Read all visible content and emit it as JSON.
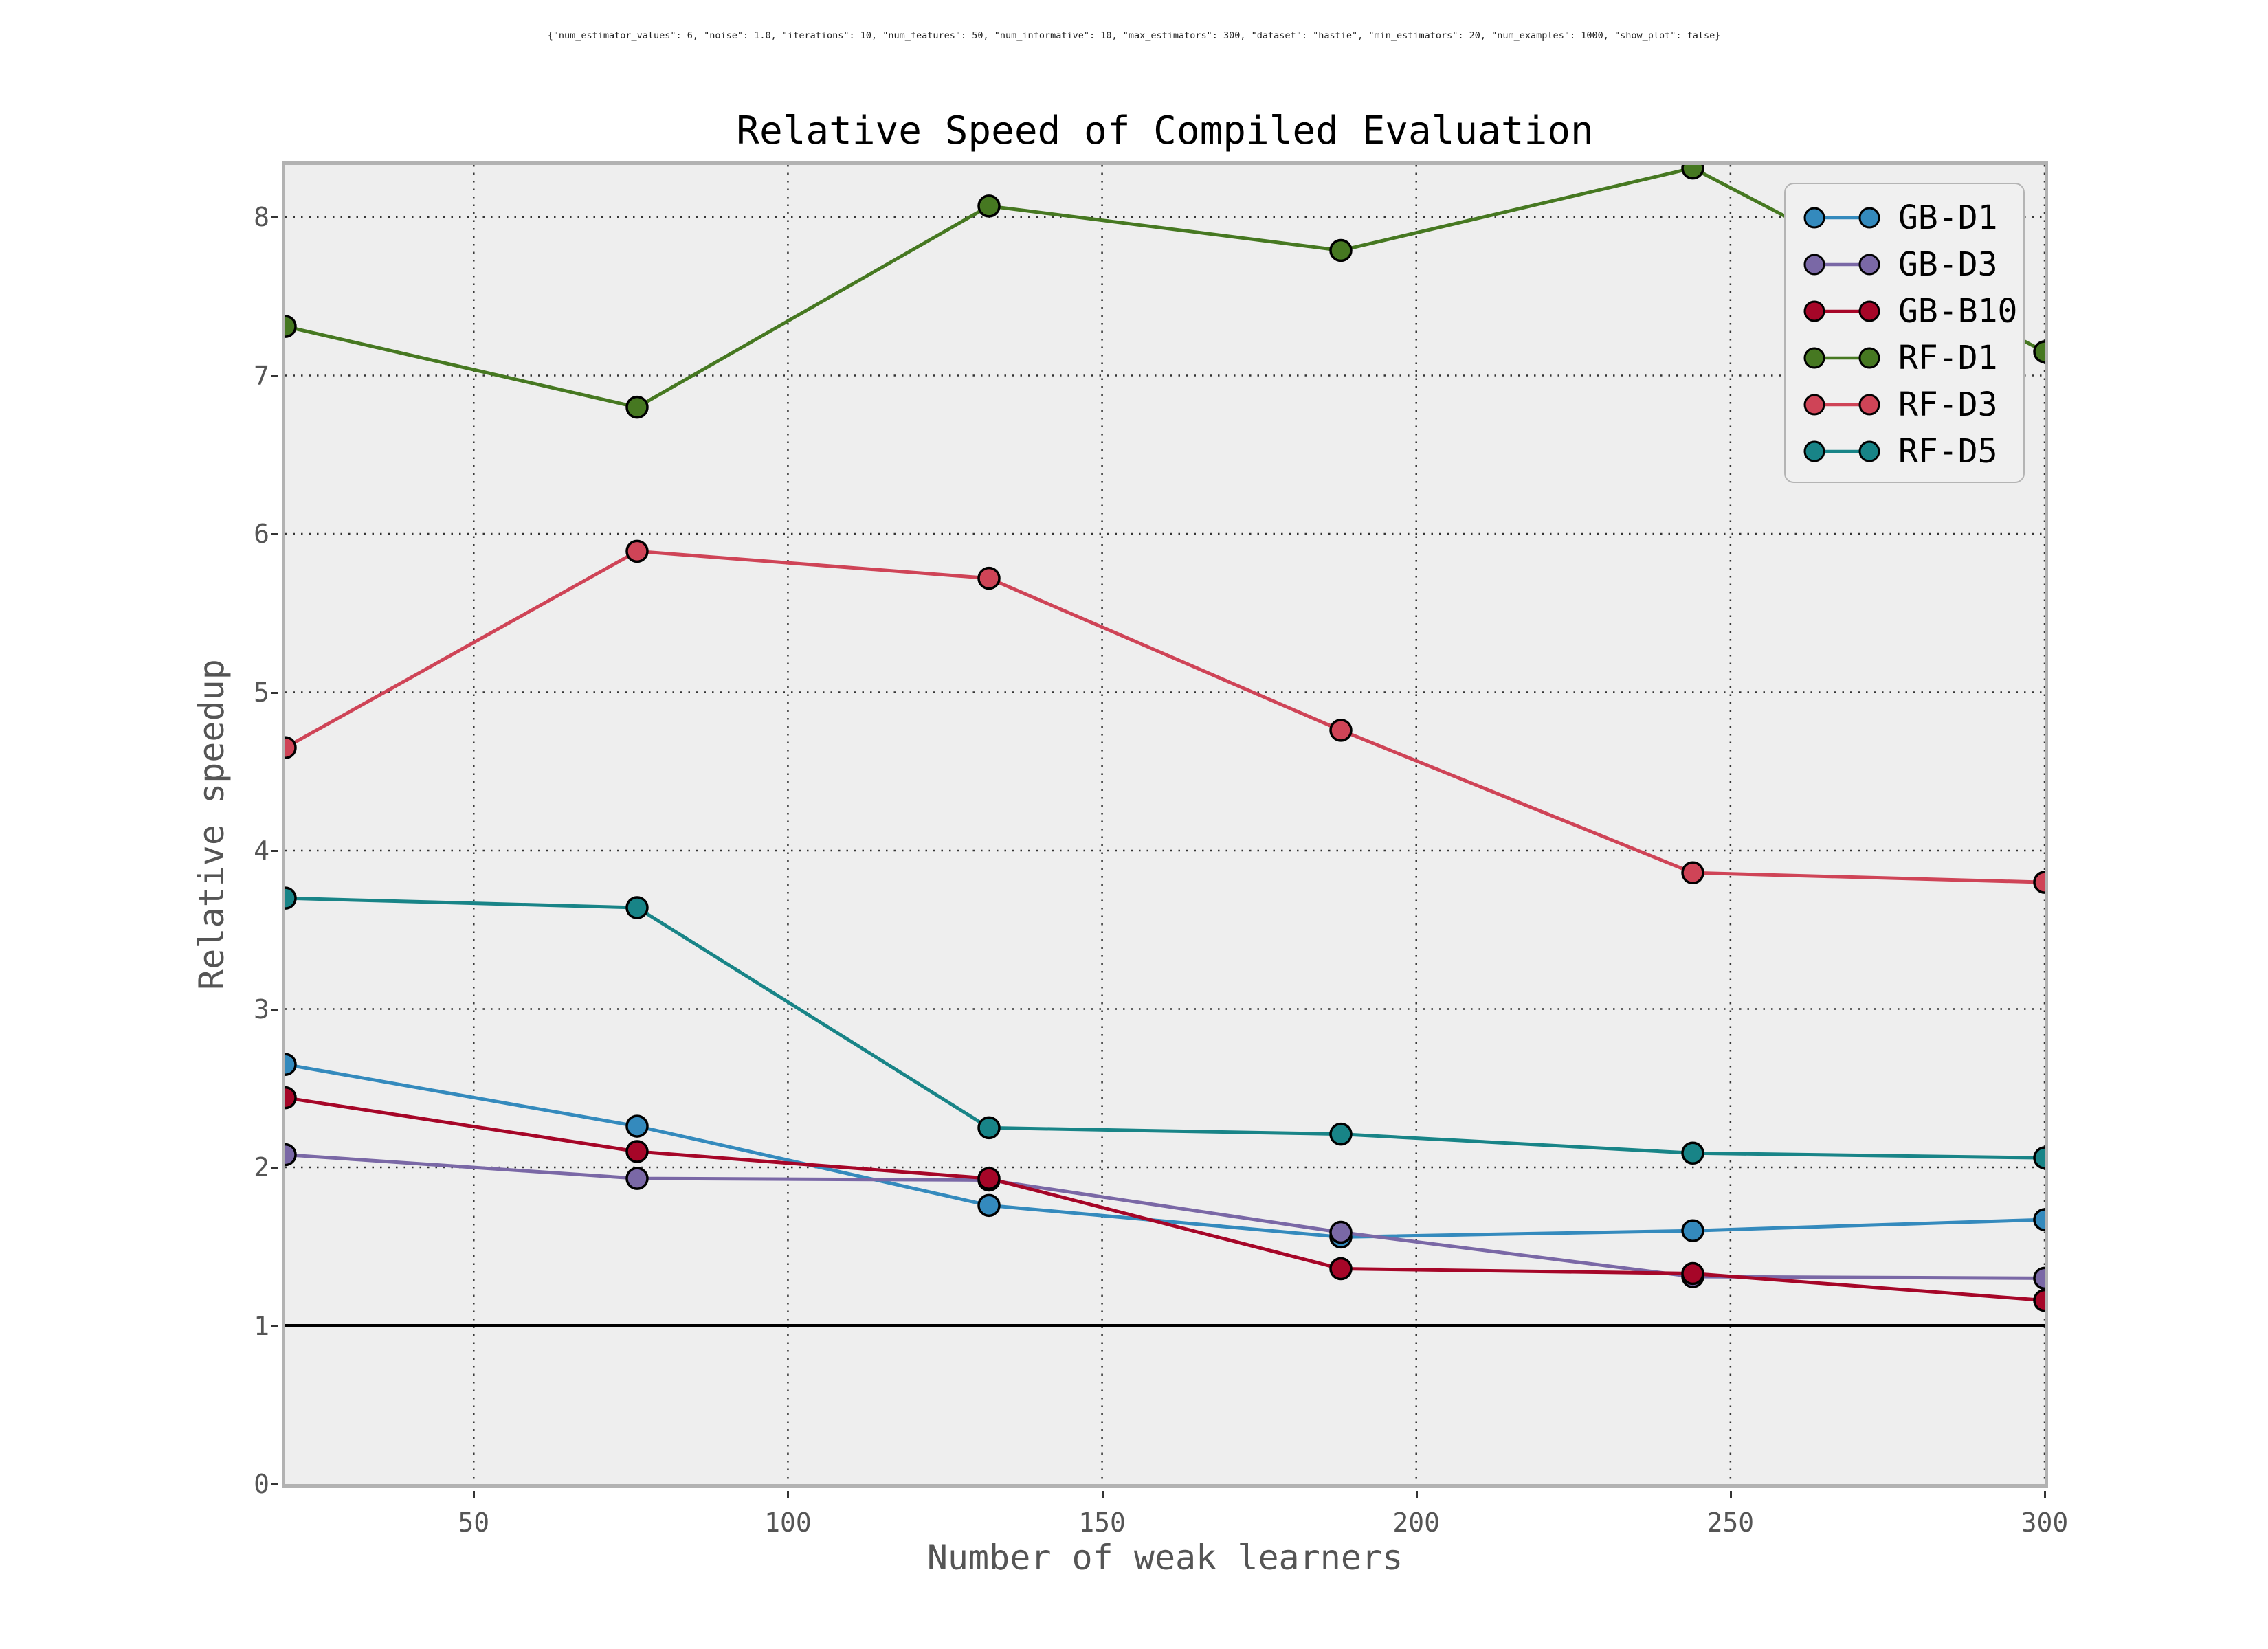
{
  "header": {
    "config_text": "{\"num_estimator_values\": 6, \"noise\": 1.0, \"iterations\": 10, \"num_features\": 50, \"num_informative\": 10, \"max_estimators\": 300, \"dataset\": \"hastie\", \"min_estimators\": 20, \"num_examples\": 1000, \"show_plot\": false}"
  },
  "style": {
    "figure_bg": "#ffffff",
    "axes_bg": "#eeeeee",
    "spine_color": "#b2b2b2",
    "grid_color": "#333333",
    "tick_label_color": "#555555",
    "baseline_color": "#000000",
    "marker_edge_color": "#000000",
    "legend_bg": "#f0f0f0",
    "legend_border": "#b4b4b4"
  },
  "chart_data": {
    "type": "line",
    "title": "Relative Speed of Compiled Evaluation",
    "xlabel": "Number of weak learners",
    "ylabel": "Relative speedup",
    "xlim": [
      20,
      300
    ],
    "ylim": [
      0,
      8.33
    ],
    "x_ticks": [
      50,
      100,
      150,
      200,
      250,
      300
    ],
    "y_ticks": [
      0,
      1,
      2,
      3,
      4,
      5,
      6,
      7,
      8
    ],
    "grid": "dotted",
    "legend_position": "upper right",
    "baseline_y": 1,
    "x": [
      20,
      76,
      132,
      188,
      244,
      300
    ],
    "series": [
      {
        "name": "GB-D1",
        "color": "#348ABD",
        "values": [
          2.65,
          2.26,
          1.76,
          1.56,
          1.6,
          1.67
        ]
      },
      {
        "name": "GB-D3",
        "color": "#7A68A6",
        "values": [
          2.08,
          1.93,
          1.92,
          1.59,
          1.31,
          1.3
        ]
      },
      {
        "name": "GB-B10",
        "color": "#A60628",
        "values": [
          2.44,
          2.1,
          1.93,
          1.36,
          1.33,
          1.16
        ]
      },
      {
        "name": "RF-D1",
        "color": "#467821",
        "values": [
          7.31,
          6.8,
          8.07,
          7.79,
          8.31,
          7.15
        ]
      },
      {
        "name": "RF-D3",
        "color": "#CF4457",
        "values": [
          4.65,
          5.89,
          5.72,
          4.76,
          3.86,
          3.8
        ]
      },
      {
        "name": "RF-D5",
        "color": "#188487",
        "values": [
          3.7,
          3.64,
          2.25,
          2.21,
          2.09,
          2.06
        ]
      }
    ]
  }
}
